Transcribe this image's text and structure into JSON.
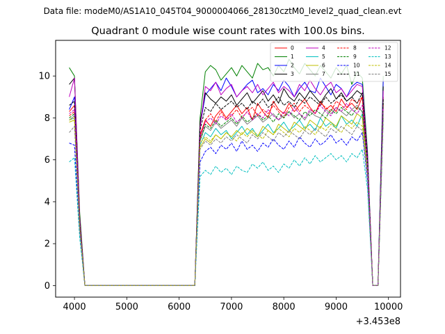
{
  "chart_data": {
    "type": "line",
    "suptitle": "Data file: modeM0/AS1A10_045T04_9000004066_28130cztM0_level2_quad_clean.evt",
    "title": "Quadrant 0 module wise count rates with 100.0s bins.",
    "xlabel": "",
    "ylabel": "",
    "x_offset_label": "+3.453e8",
    "xlim": [
      3640,
      10230
    ],
    "ylim": [
      -0.55,
      11.7
    ],
    "xticks": [
      4000,
      5000,
      6000,
      7000,
      8000,
      9000,
      10000
    ],
    "yticks": [
      0,
      2,
      4,
      6,
      8,
      10
    ],
    "x": [
      3900,
      4000,
      4100,
      4200,
      4300,
      4400,
      4500,
      4600,
      4700,
      4800,
      4900,
      5000,
      5100,
      5200,
      5300,
      5400,
      5500,
      5600,
      5700,
      5800,
      5900,
      6000,
      6100,
      6200,
      6300,
      6400,
      6500,
      6600,
      6700,
      6800,
      6900,
      7000,
      7100,
      7200,
      7300,
      7400,
      7500,
      7600,
      7700,
      7800,
      7900,
      8000,
      8100,
      8200,
      8300,
      8400,
      8500,
      8600,
      8700,
      8800,
      8900,
      9000,
      9100,
      9200,
      9300,
      9400,
      9500,
      9600,
      9700,
      9800,
      9900
    ],
    "grid": false,
    "legend_placement": "top-right",
    "series": [
      {
        "name": "0",
        "color": "#ff0000",
        "style": "solid",
        "values": [
          8.3,
          8.6,
          3.0,
          0,
          0,
          0,
          0,
          0,
          0,
          0,
          0,
          0,
          0,
          0,
          0,
          0,
          0,
          0,
          0,
          0,
          0,
          0,
          0,
          0,
          0,
          7.2,
          7.9,
          7.6,
          8.1,
          8.4,
          8.0,
          8.3,
          8.6,
          8.2,
          8.5,
          7.9,
          8.7,
          8.3,
          8.0,
          8.8,
          8.4,
          8.2,
          8.7,
          8.3,
          8.6,
          8.9,
          8.5,
          8.2,
          8.8,
          8.4,
          8.6,
          8.3,
          8.9,
          8.5,
          8.7,
          8.4,
          9.0,
          5.8,
          0,
          0,
          9.0
        ]
      },
      {
        "name": "1",
        "color": "#008000",
        "style": "solid",
        "values": [
          10.4,
          10.0,
          3.5,
          0,
          0,
          0,
          0,
          0,
          0,
          0,
          0,
          0,
          0,
          0,
          0,
          0,
          0,
          0,
          0,
          0,
          0,
          0,
          0,
          0,
          0,
          8.0,
          10.2,
          10.5,
          10.3,
          9.8,
          10.1,
          10.4,
          10.0,
          10.5,
          10.2,
          9.9,
          10.6,
          10.3,
          10.4,
          10.0,
          10.5,
          10.2,
          10.8,
          10.4,
          10.1,
          10.6,
          10.3,
          10.0,
          10.5,
          10.2,
          9.9,
          10.4,
          10.1,
          10.5,
          9.6,
          10.2,
          9.9,
          6.4,
          0,
          0,
          10.0
        ]
      },
      {
        "name": "2",
        "color": "#0000ff",
        "style": "solid",
        "values": [
          8.4,
          9.0,
          3.2,
          0,
          0,
          0,
          0,
          0,
          0,
          0,
          0,
          0,
          0,
          0,
          0,
          0,
          0,
          0,
          0,
          0,
          0,
          0,
          0,
          0,
          0,
          7.6,
          9.1,
          9.4,
          9.7,
          9.3,
          9.9,
          9.5,
          9.0,
          9.3,
          9.6,
          9.8,
          9.2,
          9.4,
          9.1,
          9.6,
          9.3,
          9.8,
          9.5,
          9.0,
          9.4,
          9.7,
          9.3,
          9.2,
          9.9,
          9.5,
          9.1,
          9.6,
          9.4,
          9.0,
          9.5,
          9.7,
          9.6,
          6.2,
          0,
          0,
          9.8
        ]
      },
      {
        "name": "3",
        "color": "#000000",
        "style": "solid",
        "values": [
          9.6,
          9.9,
          3.3,
          0,
          0,
          0,
          0,
          0,
          0,
          0,
          0,
          0,
          0,
          0,
          0,
          0,
          0,
          0,
          0,
          0,
          0,
          0,
          0,
          0,
          0,
          7.8,
          9.2,
          8.9,
          8.7,
          9.0,
          8.8,
          9.1,
          8.6,
          8.9,
          9.2,
          8.7,
          9.0,
          9.3,
          8.8,
          9.1,
          8.7,
          9.4,
          9.0,
          8.8,
          9.2,
          8.9,
          9.3,
          9.0,
          8.7,
          9.1,
          9.4,
          8.9,
          9.2,
          8.8,
          9.0,
          9.3,
          9.1,
          6.0,
          0,
          0,
          9.5
        ]
      },
      {
        "name": "4",
        "color": "#bf00bf",
        "style": "solid",
        "values": [
          9.0,
          9.9,
          3.2,
          0,
          0,
          0,
          0,
          0,
          0,
          0,
          0,
          0,
          0,
          0,
          0,
          0,
          0,
          0,
          0,
          0,
          0,
          0,
          0,
          0,
          0,
          7.5,
          9.5,
          9.3,
          9.7,
          9.1,
          9.4,
          9.6,
          9.0,
          9.3,
          9.5,
          9.2,
          9.6,
          9.1,
          9.4,
          9.7,
          9.2,
          9.5,
          9.3,
          9.0,
          9.6,
          9.3,
          9.8,
          9.4,
          9.1,
          9.5,
          9.7,
          9.2,
          9.4,
          9.0,
          9.3,
          9.6,
          9.5,
          6.1,
          0,
          0,
          9.3
        ]
      },
      {
        "name": "5",
        "color": "#00bfbf",
        "style": "solid",
        "values": [
          7.9,
          8.0,
          2.8,
          0,
          0,
          0,
          0,
          0,
          0,
          0,
          0,
          0,
          0,
          0,
          0,
          0,
          0,
          0,
          0,
          0,
          0,
          0,
          0,
          0,
          0,
          6.7,
          7.3,
          7.1,
          7.5,
          7.2,
          7.4,
          7.0,
          7.3,
          7.6,
          7.2,
          7.5,
          7.1,
          7.4,
          7.7,
          7.3,
          7.5,
          7.8,
          7.4,
          7.6,
          7.9,
          7.5,
          7.7,
          7.4,
          8.0,
          7.6,
          7.8,
          7.5,
          8.1,
          7.7,
          7.9,
          7.6,
          8.2,
          5.5,
          0,
          0,
          8.2
        ]
      },
      {
        "name": "6",
        "color": "#bfbf00",
        "style": "solid",
        "values": [
          7.8,
          7.9,
          2.8,
          0,
          0,
          0,
          0,
          0,
          0,
          0,
          0,
          0,
          0,
          0,
          0,
          0,
          0,
          0,
          0,
          0,
          0,
          0,
          0,
          0,
          0,
          6.6,
          7.0,
          6.8,
          7.2,
          7.0,
          7.3,
          7.1,
          7.4,
          7.2,
          7.5,
          7.3,
          7.1,
          7.6,
          7.4,
          7.2,
          7.7,
          7.5,
          7.3,
          7.8,
          7.6,
          7.4,
          7.9,
          7.7,
          7.5,
          8.0,
          7.8,
          7.6,
          8.1,
          7.9,
          7.7,
          8.2,
          8.0,
          5.4,
          0,
          0,
          8.0
        ]
      },
      {
        "name": "7",
        "color": "#7f7f7f",
        "style": "solid",
        "values": [
          7.9,
          8.1,
          2.8,
          0,
          0,
          0,
          0,
          0,
          0,
          0,
          0,
          0,
          0,
          0,
          0,
          0,
          0,
          0,
          0,
          0,
          0,
          0,
          0,
          0,
          0,
          6.9,
          7.6,
          7.4,
          7.8,
          7.5,
          7.7,
          7.9,
          7.6,
          8.0,
          7.7,
          7.9,
          8.1,
          7.8,
          8.0,
          8.2,
          7.9,
          8.1,
          8.3,
          8.0,
          8.2,
          7.9,
          8.3,
          8.1,
          8.0,
          8.4,
          8.2,
          8.5,
          8.3,
          8.1,
          8.4,
          8.6,
          8.3,
          5.6,
          0,
          0,
          8.8
        ]
      },
      {
        "name": "8",
        "color": "#ff0000",
        "style": "dashed",
        "values": [
          8.1,
          8.3,
          2.9,
          0,
          0,
          0,
          0,
          0,
          0,
          0,
          0,
          0,
          0,
          0,
          0,
          0,
          0,
          0,
          0,
          0,
          0,
          0,
          0,
          0,
          0,
          7.0,
          7.9,
          8.2,
          7.8,
          8.3,
          7.9,
          8.1,
          8.4,
          8.0,
          8.3,
          8.5,
          8.1,
          8.4,
          8.2,
          8.6,
          8.3,
          8.0,
          8.5,
          8.7,
          8.3,
          8.6,
          8.4,
          8.2,
          8.7,
          8.5,
          8.3,
          8.8,
          8.6,
          8.4,
          8.9,
          8.7,
          9.0,
          5.9,
          0,
          0,
          8.6
        ]
      },
      {
        "name": "9",
        "color": "#008000",
        "style": "dashed",
        "values": [
          8.0,
          8.2,
          2.9,
          0,
          0,
          0,
          0,
          0,
          0,
          0,
          0,
          0,
          0,
          0,
          0,
          0,
          0,
          0,
          0,
          0,
          0,
          0,
          0,
          0,
          0,
          6.9,
          7.7,
          7.5,
          7.9,
          7.6,
          7.8,
          8.0,
          7.7,
          8.1,
          7.8,
          8.0,
          8.2,
          7.9,
          8.1,
          7.8,
          8.2,
          8.0,
          8.3,
          8.1,
          7.9,
          8.3,
          8.1,
          8.4,
          8.2,
          8.0,
          8.4,
          8.2,
          8.5,
          8.3,
          8.1,
          8.5,
          8.3,
          5.7,
          0,
          0,
          8.7
        ]
      },
      {
        "name": "10",
        "color": "#0000ff",
        "style": "dashed",
        "values": [
          6.8,
          6.7,
          2.5,
          0,
          0,
          0,
          0,
          0,
          0,
          0,
          0,
          0,
          0,
          0,
          0,
          0,
          0,
          0,
          0,
          0,
          0,
          0,
          0,
          0,
          0,
          5.9,
          6.4,
          6.6,
          6.3,
          6.7,
          6.5,
          6.8,
          6.4,
          6.9,
          6.5,
          6.7,
          6.4,
          6.8,
          6.6,
          7.0,
          6.7,
          6.5,
          6.9,
          6.6,
          7.1,
          6.8,
          6.6,
          7.0,
          6.7,
          6.9,
          7.2,
          6.8,
          7.0,
          6.7,
          7.1,
          6.9,
          7.3,
          5.0,
          0,
          0,
          8.0
        ]
      },
      {
        "name": "11",
        "color": "#000000",
        "style": "dashed",
        "values": [
          8.6,
          8.8,
          3.0,
          0,
          0,
          0,
          0,
          0,
          0,
          0,
          0,
          0,
          0,
          0,
          0,
          0,
          0,
          0,
          0,
          0,
          0,
          0,
          0,
          0,
          0,
          7.4,
          8.5,
          8.3,
          8.7,
          8.4,
          8.6,
          8.8,
          8.5,
          8.7,
          8.4,
          8.8,
          8.6,
          8.9,
          8.5,
          8.7,
          9.0,
          8.6,
          8.8,
          8.5,
          8.9,
          8.7,
          9.0,
          8.8,
          8.6,
          9.0,
          8.7,
          8.9,
          9.1,
          8.8,
          9.0,
          8.7,
          9.2,
          6.0,
          0,
          0,
          8.9
        ]
      },
      {
        "name": "12",
        "color": "#bf00bf",
        "style": "dashed",
        "values": [
          8.2,
          8.4,
          2.9,
          0,
          0,
          0,
          0,
          0,
          0,
          0,
          0,
          0,
          0,
          0,
          0,
          0,
          0,
          0,
          0,
          0,
          0,
          0,
          0,
          0,
          0,
          7.1,
          7.8,
          8.0,
          7.7,
          8.1,
          7.9,
          8.2,
          7.8,
          8.0,
          8.3,
          7.9,
          8.2,
          8.0,
          8.4,
          8.1,
          7.9,
          8.3,
          8.1,
          8.5,
          8.2,
          8.0,
          8.4,
          8.2,
          8.6,
          8.3,
          8.1,
          8.5,
          8.3,
          8.7,
          8.4,
          8.2,
          8.6,
          5.8,
          0,
          0,
          8.5
        ]
      },
      {
        "name": "13",
        "color": "#00bfbf",
        "style": "dashed",
        "values": [
          5.9,
          6.1,
          2.3,
          0,
          0,
          0,
          0,
          0,
          0,
          0,
          0,
          0,
          0,
          0,
          0,
          0,
          0,
          0,
          0,
          0,
          0,
          0,
          0,
          0,
          0,
          5.2,
          5.5,
          5.3,
          5.7,
          5.4,
          5.6,
          5.3,
          5.7,
          5.5,
          5.4,
          5.8,
          5.6,
          5.9,
          5.5,
          5.7,
          5.4,
          5.8,
          5.6,
          6.0,
          5.7,
          6.1,
          5.8,
          6.2,
          5.9,
          6.1,
          6.3,
          6.0,
          6.2,
          5.9,
          6.3,
          6.1,
          6.5,
          4.6,
          0,
          0,
          8.0
        ]
      },
      {
        "name": "14",
        "color": "#bfbf00",
        "style": "dashed",
        "values": [
          7.9,
          8.0,
          2.8,
          0,
          0,
          0,
          0,
          0,
          0,
          0,
          0,
          0,
          0,
          0,
          0,
          0,
          0,
          0,
          0,
          0,
          0,
          0,
          0,
          0,
          0,
          6.8,
          7.1,
          6.9,
          7.2,
          7.0,
          7.3,
          7.1,
          6.9,
          7.3,
          7.1,
          7.4,
          7.2,
          7.0,
          7.4,
          7.2,
          7.5,
          7.3,
          7.1,
          7.5,
          7.3,
          7.6,
          7.4,
          7.2,
          7.6,
          7.4,
          7.7,
          7.5,
          7.3,
          7.7,
          7.5,
          7.8,
          7.6,
          5.3,
          0,
          0,
          8.1
        ]
      },
      {
        "name": "15",
        "color": "#7f7f7f",
        "style": "dashed",
        "values": [
          7.3,
          7.6,
          2.7,
          0,
          0,
          0,
          0,
          0,
          0,
          0,
          0,
          0,
          0,
          0,
          0,
          0,
          0,
          0,
          0,
          0,
          0,
          0,
          0,
          0,
          0,
          6.5,
          6.9,
          6.7,
          7.0,
          6.8,
          7.1,
          6.9,
          7.2,
          7.0,
          6.8,
          7.2,
          7.0,
          7.3,
          7.1,
          6.9,
          7.3,
          7.1,
          7.4,
          7.2,
          7.0,
          7.4,
          7.2,
          7.5,
          7.3,
          7.1,
          7.5,
          7.3,
          7.6,
          7.4,
          7.2,
          7.6,
          7.4,
          5.2,
          0,
          0,
          8.3
        ]
      }
    ]
  }
}
